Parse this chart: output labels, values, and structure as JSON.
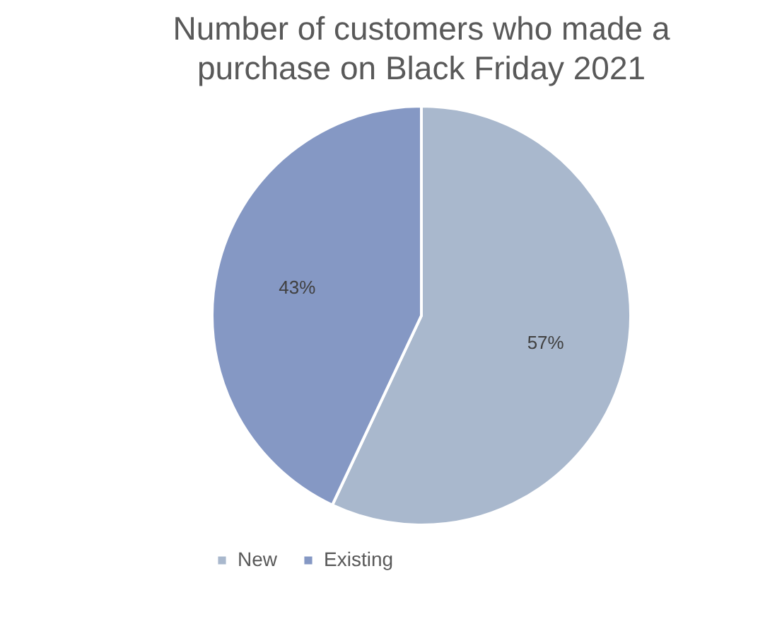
{
  "chart_data": {
    "type": "pie",
    "title": "Number of customers who made a purchase on Black Friday 2021",
    "categories": [
      "New",
      "Existing"
    ],
    "values": [
      57,
      43
    ],
    "colors": [
      "#a9b8cd",
      "#8598c4"
    ],
    "value_labels": [
      "57%",
      "43%"
    ],
    "legend": "bottom"
  }
}
